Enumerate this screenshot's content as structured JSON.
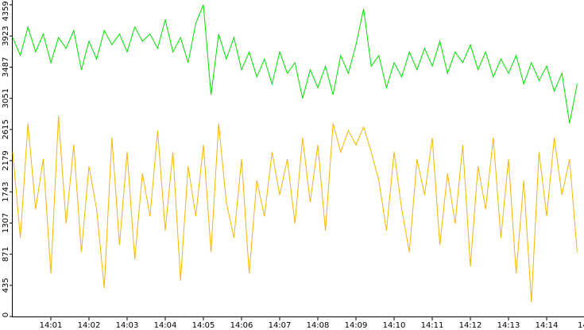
{
  "chart_data": {
    "type": "line",
    "x": [
      0,
      0.2,
      0.4,
      0.6,
      0.8,
      1,
      1.2,
      1.4,
      1.6,
      1.8,
      2,
      2.2,
      2.4,
      2.6,
      2.8,
      3,
      3.2,
      3.4,
      3.6,
      3.8,
      4,
      4.2,
      4.4,
      4.6,
      4.8,
      5,
      5.2,
      5.4,
      5.6,
      5.8,
      6,
      6.2,
      6.4,
      6.6,
      6.8,
      7,
      7.2,
      7.4,
      7.6,
      7.8,
      8,
      8.2,
      8.4,
      8.6,
      8.8,
      9,
      9.2,
      9.4,
      9.6,
      9.8,
      10,
      10.2,
      10.4,
      10.6,
      10.8,
      11,
      11.2,
      11.4,
      11.6,
      11.8,
      12,
      12.2,
      12.4,
      12.6,
      12.8,
      13,
      13.2,
      13.4,
      13.6,
      13.8,
      14,
      14.2,
      14.4,
      14.6,
      14.8
    ],
    "series": [
      {
        "color": "#00e000",
        "values": [
          3900,
          3650,
          4050,
          3700,
          3950,
          3550,
          3900,
          3750,
          4000,
          3450,
          3850,
          3600,
          4000,
          3800,
          3950,
          3700,
          4050,
          3850,
          3950,
          3750,
          4150,
          3700,
          3900,
          3550,
          4100,
          4359,
          3100,
          3950,
          3600,
          3900,
          3450,
          3700,
          3350,
          3600,
          3250,
          3700,
          3400,
          3550,
          3050,
          3450,
          3200,
          3500,
          3100,
          3650,
          3400,
          3800,
          4300,
          3500,
          3650,
          3200,
          3550,
          3350,
          3700,
          3450,
          3750,
          3500,
          3850,
          3400,
          3700,
          3550,
          3800,
          3450,
          3700,
          3350,
          3600,
          3400,
          3650,
          3250,
          3550,
          3300,
          3500,
          3150,
          3400,
          2700,
          3250
        ]
      },
      {
        "color": "#f5b800",
        "values": [
          2300,
          1100,
          2700,
          1500,
          2200,
          600,
          2800,
          1300,
          2400,
          900,
          2100,
          1500,
          400,
          2500,
          1000,
          2300,
          800,
          2000,
          1400,
          2600,
          1200,
          2300,
          500,
          2100,
          1400,
          2400,
          900,
          2700,
          1600,
          1100,
          2200,
          600,
          1900,
          1400,
          2300,
          1700,
          2200,
          1300,
          2500,
          1600,
          2400,
          1200,
          2700,
          2300,
          2600,
          2400,
          2650,
          2300,
          1900,
          1200,
          2300,
          1500,
          900,
          2200,
          1700,
          2500,
          1000,
          2000,
          1300,
          2400,
          700,
          2100,
          1500,
          2500,
          1100,
          2200,
          600,
          1900,
          200,
          2300,
          1400,
          2500,
          1700,
          2200,
          900
        ]
      }
    ],
    "xlim": [
      0,
      15
    ],
    "xticks": [
      {
        "value": 1,
        "label": "14:01"
      },
      {
        "value": 2,
        "label": "14:02"
      },
      {
        "value": 3,
        "label": "14:03"
      },
      {
        "value": 4,
        "label": "14:04"
      },
      {
        "value": 5,
        "label": "14:05"
      },
      {
        "value": 6,
        "label": "14:06"
      },
      {
        "value": 7,
        "label": "14:07"
      },
      {
        "value": 8,
        "label": "14:08"
      },
      {
        "value": 9,
        "label": "14:09"
      },
      {
        "value": 10,
        "label": "14:10"
      },
      {
        "value": 11,
        "label": "14:11"
      },
      {
        "value": 12,
        "label": "14:12"
      },
      {
        "value": 13,
        "label": "14:13"
      },
      {
        "value": 14,
        "label": "14:14"
      },
      {
        "value": 15,
        "label": "14"
      }
    ],
    "ylim": [
      0,
      4359
    ],
    "yticks": [
      0,
      435,
      871,
      1307,
      1743,
      2179,
      2615,
      3051,
      3487,
      3923,
      4359
    ]
  }
}
